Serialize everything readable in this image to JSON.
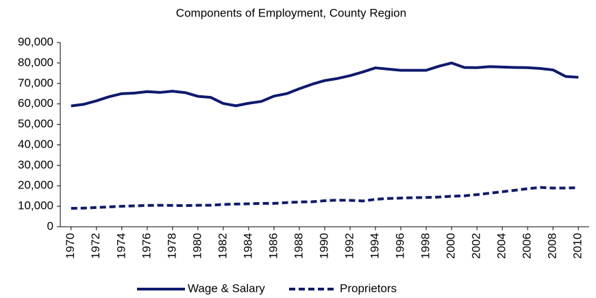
{
  "chart_data": {
    "type": "line",
    "title": "Components of Employment, County Region",
    "x": [
      1970,
      1971,
      1972,
      1973,
      1974,
      1975,
      1976,
      1977,
      1978,
      1979,
      1980,
      1981,
      1982,
      1983,
      1984,
      1985,
      1986,
      1987,
      1988,
      1989,
      1990,
      1991,
      1992,
      1993,
      1994,
      1995,
      1996,
      1997,
      1998,
      1999,
      2000,
      2001,
      2002,
      2003,
      2004,
      2005,
      2006,
      2007,
      2008,
      2009,
      2010
    ],
    "series": [
      {
        "name": "Wage & Salary",
        "color": "#0d1a6e",
        "dash": false,
        "values": [
          59000,
          59800,
          61500,
          63500,
          65000,
          65300,
          66000,
          65600,
          66200,
          65500,
          63700,
          63200,
          60200,
          59100,
          60300,
          61200,
          63800,
          65000,
          67400,
          69600,
          71400,
          72400,
          73800,
          75600,
          77600,
          77000,
          76400,
          76400,
          76400,
          78400,
          80000,
          77800,
          77700,
          78200,
          78000,
          77800,
          77700,
          77300,
          76600,
          73400,
          73000
        ]
      },
      {
        "name": "Proprietors",
        "color": "#0d1a6e",
        "dash": true,
        "values": [
          9000,
          9100,
          9400,
          9700,
          10000,
          10200,
          10400,
          10500,
          10400,
          10300,
          10500,
          10500,
          10900,
          11100,
          11200,
          11400,
          11400,
          11800,
          12100,
          12200,
          12700,
          13000,
          12900,
          12600,
          13400,
          13800,
          14000,
          14200,
          14300,
          14500,
          14900,
          15100,
          15700,
          16400,
          17100,
          17800,
          18600,
          19200,
          18900,
          18900,
          19100
        ]
      }
    ],
    "xlim": [
      1969.15,
      2010.85
    ],
    "xticks": [
      1970,
      1972,
      1974,
      1976,
      1978,
      1980,
      1982,
      1984,
      1986,
      1988,
      1990,
      1992,
      1994,
      1996,
      1998,
      2000,
      2002,
      2004,
      2006,
      2008,
      2010
    ],
    "ylim": [
      0,
      90000
    ],
    "yticks": [
      0,
      {
        "value": 10000,
        "label": "10,000"
      },
      {
        "value": 20000,
        "label": "20,000"
      },
      {
        "value": 30000,
        "label": "30,000"
      },
      {
        "value": 40000,
        "label": "40,000"
      },
      {
        "value": 50000,
        "label": "50,000"
      },
      {
        "value": 60000,
        "label": "60,000"
      },
      {
        "value": 70000,
        "label": "70,000"
      },
      {
        "value": 80000,
        "label": "80,000"
      },
      {
        "value": 90000,
        "label": "90,000"
      }
    ],
    "grid": false,
    "legend": "bottom"
  }
}
